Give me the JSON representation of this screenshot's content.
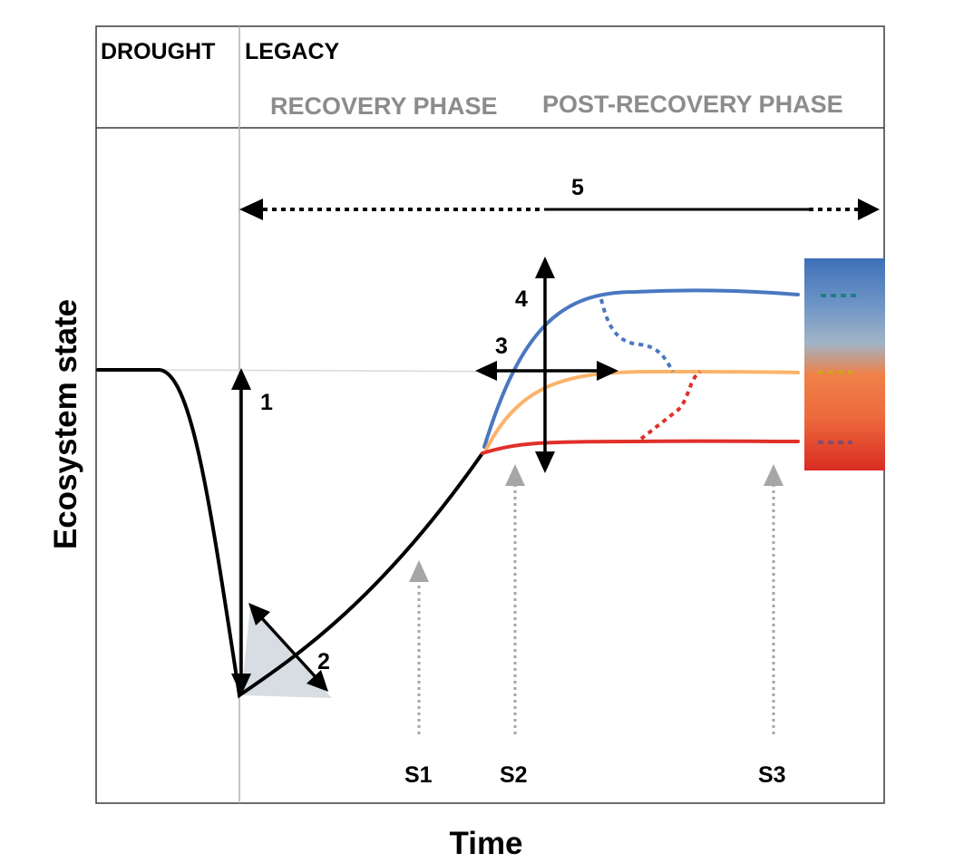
{
  "header": {
    "drought": "DROUGHT",
    "legacy": "LEGACY",
    "recovery_phase": "RECOVERY PHASE",
    "post_recovery_phase": "POST-RECOVERY PHASE"
  },
  "axes": {
    "y_title": "Ecosystem state",
    "x_title": "Time"
  },
  "markers": {
    "m1": "1",
    "m2": "2",
    "m3": "3",
    "m4": "4",
    "m5": "5"
  },
  "scenarios": {
    "s1": "S1",
    "s2": "S2",
    "s3": "S3"
  },
  "colors": {
    "recovery_curve": "#000000",
    "above_baseline": "#4a78c0",
    "baseline": "#fbb36a",
    "below_baseline": "#e0302a",
    "gradient_top": "#3e6fb8",
    "gradient_mid_light": "#a0b4c6",
    "gradient_mid_orange": "#f08048",
    "gradient_bottom": "#d92b22",
    "scenario_arrow": "#a6a6a6",
    "triangle_fill": "#d8dde3"
  }
}
